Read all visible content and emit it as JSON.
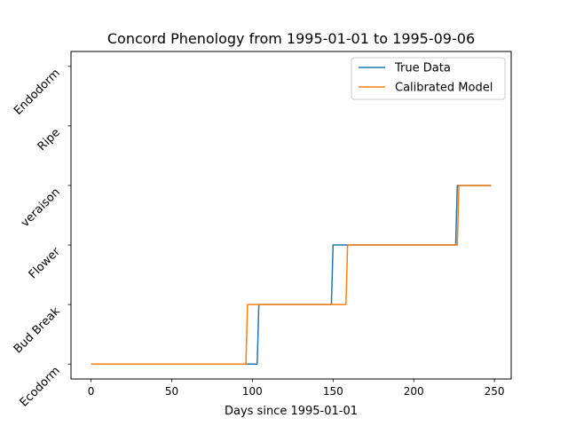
{
  "chart_data": {
    "type": "line",
    "title": "Concord Phenology from 1995-01-01 to 1995-09-06",
    "xlabel": "Days since 1995-01-01",
    "ylabel": "",
    "xlim": [
      -12.4,
      260.4
    ],
    "ylim": [
      -0.25,
      5.25
    ],
    "xticks": [
      0,
      50,
      100,
      150,
      200,
      250
    ],
    "ytick_labels": [
      "Ecodorm",
      "Bud Break",
      "Flower",
      "veraison",
      "Ripe",
      "Endodorm"
    ],
    "grid": false,
    "legend_position": "upper right",
    "series": [
      {
        "name": "True Data",
        "color": "#1f77b4",
        "points": [
          [
            0,
            0
          ],
          [
            103,
            0
          ],
          [
            104,
            1
          ],
          [
            149,
            1
          ],
          [
            150,
            2
          ],
          [
            226,
            2
          ],
          [
            227,
            3
          ],
          [
            248,
            3
          ]
        ]
      },
      {
        "name": "Calibrated Model",
        "color": "#ff7f0e",
        "points": [
          [
            0,
            0
          ],
          [
            96,
            0
          ],
          [
            97,
            1
          ],
          [
            158,
            1
          ],
          [
            159,
            2
          ],
          [
            227,
            2
          ],
          [
            228,
            3
          ],
          [
            248,
            3
          ]
        ]
      }
    ]
  }
}
